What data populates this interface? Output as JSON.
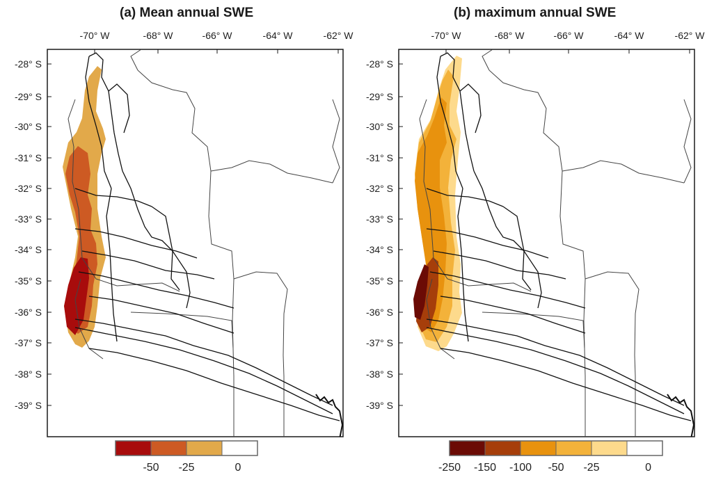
{
  "panels": [
    {
      "title": "(a)   Mean annual SWE",
      "legend": {
        "colors": [
          "#a80c0c",
          "#cd5a23",
          "#e2a94a",
          "#ffffff"
        ],
        "labels": [
          "-50",
          "-25",
          "0"
        ]
      }
    },
    {
      "title": "(b) maximum annual SWE",
      "legend": {
        "colors": [
          "#6b0b05",
          "#a63e0a",
          "#e8920e",
          "#f3b23a",
          "#fdda8c",
          "#ffffff"
        ],
        "labels": [
          "-250",
          "-150",
          "-100",
          "-50",
          "-25",
          "0"
        ]
      }
    }
  ],
  "axes": {
    "lon_labels": [
      "-70° W",
      "-68° W",
      "-66° W",
      "-64° W",
      "-62° W"
    ],
    "lat_labels": [
      "-28° S",
      "-29° S",
      "-30° S",
      "-31° S",
      "-32° S",
      "-33° S",
      "-34° S",
      "-35° S",
      "-36° S",
      "-37° S",
      "-38° S",
      "-39° S"
    ]
  },
  "colors": {
    "frame": "#1a1a1a",
    "boundary": "#444444",
    "river": "#111111"
  }
}
